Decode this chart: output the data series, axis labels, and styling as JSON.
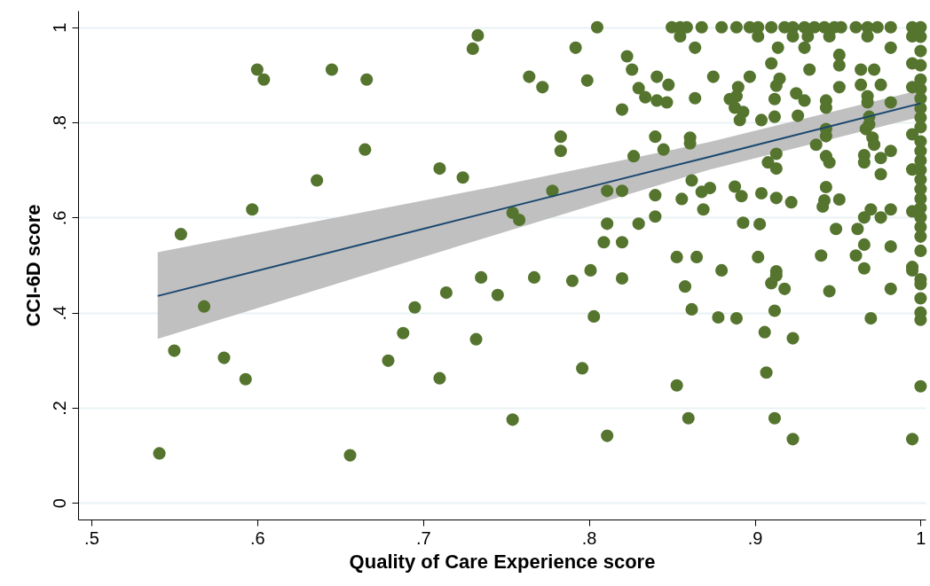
{
  "chart_data": {
    "type": "scatter",
    "xlabel": "Quality of Care Experience score",
    "ylabel": "CCI-6D score",
    "xlim": [
      0.492,
      1.003
    ],
    "ylim": [
      -0.035,
      1.035
    ],
    "xticks": [
      {
        "value": 0.5,
        "label": ".5"
      },
      {
        "value": 0.6,
        "label": ".6"
      },
      {
        "value": 0.7,
        "label": ".7"
      },
      {
        "value": 0.8,
        "label": ".8"
      },
      {
        "value": 0.9,
        "label": ".9"
      },
      1
    ],
    "yticks": [
      0,
      {
        "value": 0.2,
        "label": ".2"
      },
      {
        "value": 0.4,
        "label": ".4"
      },
      {
        "value": 0.6,
        "label": ".6"
      },
      {
        "value": 0.8,
        "label": ".8"
      },
      1
    ],
    "grid": "y",
    "series": [
      {
        "marker": "circle",
        "color": "#55752f",
        "x": [
          0.541,
          0.55,
          0.554,
          0.568,
          0.58,
          0.593,
          0.597,
          0.6,
          0.604,
          0.636,
          0.645,
          0.656,
          0.665,
          0.666,
          0.679,
          0.688,
          0.695,
          0.71,
          0.71,
          0.714,
          0.724,
          0.73,
          0.732,
          0.733,
          0.735,
          0.745,
          0.754,
          0.754,
          0.758,
          0.764,
          0.767,
          0.772,
          0.778,
          0.783,
          0.783,
          0.79,
          0.792,
          0.796,
          0.799,
          0.801,
          0.803,
          0.805,
          0.809,
          0.811,
          0.811,
          0.811,
          0.82,
          0.82,
          0.82,
          0.82,
          0.823,
          0.826,
          0.827,
          0.83,
          0.83,
          0.834,
          0.84,
          0.84,
          0.84,
          0.841,
          0.841,
          0.845,
          0.848,
          0.85,
          0.855,
          0.859,
          0.855,
          0.853,
          0.853,
          0.856,
          0.858,
          0.86,
          0.861,
          0.861,
          0.862,
          0.862,
          0.864,
          0.864,
          0.847,
          0.865,
          0.868,
          0.869,
          0.873,
          0.868,
          0.875,
          0.878,
          0.88,
          0.88,
          0.889,
          0.897,
          0.902,
          0.91,
          0.918,
          0.923,
          0.93,
          0.936,
          0.942,
          0.948,
          0.952,
          0.961,
          0.968,
          0.974,
          0.982,
          0.995,
          0.902,
          0.923,
          0.932,
          0.945,
          0.968,
          0.995,
          0.914,
          0.93,
          0.982,
          0.951,
          0.951,
          0.91,
          0.933,
          0.964,
          0.972,
          0.995,
          0.897,
          0.915,
          0.913,
          0.89,
          0.951,
          0.964,
          0.976,
          0.995,
          0.885,
          0.889,
          0.888,
          0.893,
          0.891,
          0.912,
          0.925,
          0.93,
          0.943,
          0.943,
          0.968,
          0.968,
          0.982,
          0.904,
          0.912,
          0.926,
          0.943,
          0.943,
          0.969,
          0.969,
          0.967,
          0.971,
          0.972,
          0.937,
          0.995,
          0.913,
          0.908,
          0.913,
          0.943,
          0.945,
          0.966,
          0.966,
          0.976,
          0.982,
          0.976,
          0.995,
          0.888,
          0.892,
          0.904,
          0.913,
          0.922,
          0.943,
          0.942,
          0.941,
          0.951,
          0.97,
          0.966,
          0.976,
          0.982,
          0.995,
          0.893,
          0.903,
          0.949,
          0.962,
          0.966,
          0.982,
          0.902,
          0.94,
          0.961,
          0.913,
          0.966,
          0.995,
          0.913,
          0.91,
          0.918,
          0.945,
          0.982,
          0.995,
          0.889,
          0.912,
          0.906,
          0.923,
          0.97,
          0.907,
          0.912,
          0.923,
          0.995,
          1,
          1,
          1,
          1,
          1,
          1,
          1,
          1,
          1,
          1,
          1,
          1,
          1,
          1,
          1,
          1,
          1,
          1,
          1,
          1,
          1,
          1,
          1,
          1,
          1,
          1,
          1,
          1
        ],
        "values": [
          0.104,
          0.32,
          0.565,
          0.413,
          0.305,
          0.26,
          0.617,
          0.911,
          0.89,
          0.678,
          0.911,
          0.1,
          0.743,
          0.89,
          0.299,
          0.357,
          0.411,
          0.262,
          0.703,
          0.442,
          0.684,
          0.955,
          0.344,
          0.983,
          0.474,
          0.437,
          0.175,
          0.61,
          0.595,
          0.896,
          0.474,
          0.874,
          0.656,
          0.77,
          0.74,
          0.467,
          0.957,
          0.283,
          0.888,
          0.489,
          0.392,
          1,
          0.548,
          0.141,
          0.587,
          0.656,
          0.827,
          0.656,
          0.548,
          0.472,
          0.939,
          0.911,
          0.729,
          0.872,
          0.587,
          0.853,
          0.602,
          0.77,
          0.647,
          0.896,
          0.846,
          0.743,
          0.879,
          1,
          1,
          1,
          0.981,
          0.517,
          0.247,
          0.639,
          0.455,
          0.178,
          0.768,
          0.756,
          0.407,
          0.678,
          0.957,
          0.851,
          0.842,
          0.517,
          0.654,
          0.617,
          0.662,
          1,
          0.896,
          0.39,
          0.489,
          1,
          1,
          1,
          1,
          1,
          1,
          1,
          1,
          1,
          1,
          1,
          1,
          1,
          1,
          1,
          1,
          1,
          0.981,
          0.981,
          0.981,
          0.981,
          0.981,
          0.981,
          0.957,
          0.957,
          0.957,
          0.942,
          0.92,
          0.924,
          0.911,
          0.911,
          0.911,
          0.924,
          0.896,
          0.892,
          0.877,
          0.874,
          0.874,
          0.879,
          0.879,
          0.874,
          0.849,
          0.855,
          0.831,
          0.822,
          0.805,
          0.849,
          0.861,
          0.846,
          0.846,
          0.831,
          0.855,
          0.842,
          0.842,
          0.805,
          0.812,
          0.814,
          0.786,
          0.771,
          0.812,
          0.796,
          0.786,
          0.768,
          0.753,
          0.753,
          0.775,
          0.734,
          0.716,
          0.703,
          0.729,
          0.716,
          0.731,
          0.716,
          0.725,
          0.74,
          0.691,
          0.701,
          0.665,
          0.645,
          0.651,
          0.641,
          0.632,
          0.664,
          0.636,
          0.623,
          0.638,
          0.617,
          0.6,
          0.6,
          0.617,
          0.613,
          0.589,
          0.586,
          0.576,
          0.576,
          0.543,
          0.539,
          0.517,
          0.52,
          0.52,
          0.487,
          0.493,
          0.496,
          0.478,
          0.462,
          0.45,
          0.445,
          0.45,
          0.489,
          0.388,
          0.404,
          0.359,
          0.346,
          0.388,
          0.274,
          0.178,
          0.134,
          0.134,
          1,
          0.98,
          0.95,
          0.92,
          0.89,
          0.87,
          0.85,
          0.83,
          0.81,
          0.79,
          0.76,
          0.74,
          0.72,
          0.7,
          0.68,
          0.66,
          0.64,
          0.62,
          0.6,
          0.58,
          0.56,
          0.53,
          0.47,
          0.46,
          0.43,
          0.4,
          0.385,
          0.245
        ]
      },
      {
        "type": "line",
        "color": "#1a476f",
        "x": [
          0.54,
          0.743,
          0.872,
          1
        ],
        "values": [
          0.435,
          0.614,
          0.727,
          0.84
        ],
        "lower": [
          0.345,
          0.563,
          0.7,
          0.812
        ],
        "upper": [
          0.527,
          0.665,
          0.758,
          0.868
        ]
      }
    ]
  }
}
